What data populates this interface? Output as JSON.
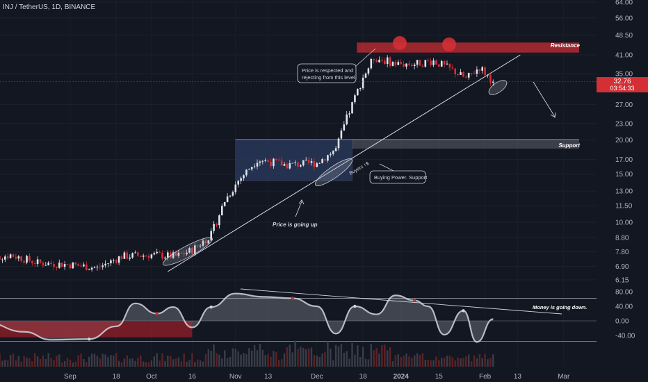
{
  "header": {
    "symbol_line": "INJ / TetherUS, 1D, BINANCE"
  },
  "colors": {
    "background": "#131722",
    "up": "#e0e3eb",
    "down": "#d32f35",
    "resistance": "#b22a30",
    "support": "#5d606b",
    "accumulation": "#2a3a5f",
    "price_tag": "#d32f35",
    "osc_fill": "#9598a1",
    "osc_neg": "#c2202a",
    "text": "#d1d4dc"
  },
  "chart_data": [
    {
      "type": "candlestick",
      "title": "INJ / TetherUS, 1D, BINANCE",
      "y_scale": "log",
      "y_ticks": [
        "64.00",
        "56.00",
        "48.50",
        "41.00",
        "35.00",
        "27.00",
        "23.00",
        "20.00",
        "17.00",
        "15.00",
        "13.00",
        "11.50",
        "10.00",
        "8.80",
        "7.80",
        "6.90",
        "6.15"
      ],
      "x_ticks": [
        "Sep",
        "18",
        "Oct",
        "16",
        "Nov",
        "13",
        "Dec",
        "18",
        "2024",
        "15",
        "Feb",
        "13",
        "Mar"
      ],
      "last_price": "32.76",
      "countdown": "03:54:33",
      "price_path": [
        {
          "date": "2023-08-01",
          "close": 7.3
        },
        {
          "date": "2023-08-10",
          "close": 7.6
        },
        {
          "date": "2023-08-20",
          "close": 7.1
        },
        {
          "date": "2023-09-01",
          "close": 7.0
        },
        {
          "date": "2023-09-11",
          "close": 6.8
        },
        {
          "date": "2023-09-20",
          "close": 7.5
        },
        {
          "date": "2023-10-01",
          "close": 7.6
        },
        {
          "date": "2023-10-10",
          "close": 7.5
        },
        {
          "date": "2023-10-16",
          "close": 7.9
        },
        {
          "date": "2023-10-23",
          "close": 9.0
        },
        {
          "date": "2023-10-28",
          "close": 12.0
        },
        {
          "date": "2023-11-02",
          "close": 14.2
        },
        {
          "date": "2023-11-09",
          "close": 17.0
        },
        {
          "date": "2023-11-20",
          "close": 16.2
        },
        {
          "date": "2023-12-01",
          "close": 16.5
        },
        {
          "date": "2023-12-08",
          "close": 18.5
        },
        {
          "date": "2023-12-12",
          "close": 24.0
        },
        {
          "date": "2023-12-18",
          "close": 34.0
        },
        {
          "date": "2023-12-22",
          "close": 40.0
        },
        {
          "date": "2023-12-31",
          "close": 38.0
        },
        {
          "date": "2024-01-06",
          "close": 38.0
        },
        {
          "date": "2024-01-13",
          "close": 39.0
        },
        {
          "date": "2024-01-20",
          "close": 36.0
        },
        {
          "date": "2024-01-25",
          "close": 33.5
        },
        {
          "date": "2024-01-30",
          "close": 37.0
        },
        {
          "date": "2024-02-04",
          "close": 32.76
        }
      ],
      "resistance_zone": {
        "low": 41.8,
        "high": 45.5,
        "label": "Resistance"
      },
      "support_zone": {
        "low": 18.6,
        "high": 20.1,
        "label": "Support"
      },
      "accumulation_box": {
        "from": "2023-11-01",
        "to": "2023-12-14",
        "low": 14.2,
        "high": 20.1
      },
      "trendline": {
        "from": {
          "date": "2023-10-07",
          "price": 6.6
        },
        "to": {
          "date": "2024-02-14",
          "price": 41.0
        }
      },
      "annotations": {
        "respected": "Price is respected and rejecting from this level.",
        "buying": "Buying Power. Support",
        "going_up": "Price is going up",
        "buyers": "Buyers ↑$"
      }
    },
    {
      "type": "area",
      "title": "",
      "y_ticks": [
        "80.00",
        "40.00",
        "0.00",
        "-40.00"
      ],
      "series": [
        {
          "values": [
            {
              "date": "2023-08-01",
              "v": -5
            },
            {
              "date": "2023-08-15",
              "v": -30
            },
            {
              "date": "2023-08-25",
              "v": -52
            },
            {
              "date": "2023-09-08",
              "v": -50
            },
            {
              "date": "2023-09-18",
              "v": -15
            },
            {
              "date": "2023-09-25",
              "v": 48
            },
            {
              "date": "2023-10-03",
              "v": 20
            },
            {
              "date": "2023-10-09",
              "v": 38
            },
            {
              "date": "2023-10-16",
              "v": -18
            },
            {
              "date": "2023-10-23",
              "v": 38
            },
            {
              "date": "2023-11-01",
              "v": 75
            },
            {
              "date": "2023-11-11",
              "v": 66
            },
            {
              "date": "2023-11-22",
              "v": 62
            },
            {
              "date": "2023-12-01",
              "v": 40
            },
            {
              "date": "2023-12-08",
              "v": -35
            },
            {
              "date": "2023-12-15",
              "v": 40
            },
            {
              "date": "2023-12-23",
              "v": 18
            },
            {
              "date": "2023-12-30",
              "v": 70
            },
            {
              "date": "2024-01-06",
              "v": 56
            },
            {
              "date": "2024-01-11",
              "v": 40
            },
            {
              "date": "2024-01-17",
              "v": -38
            },
            {
              "date": "2024-01-24",
              "v": 28
            },
            {
              "date": "2024-01-29",
              "v": -58
            },
            {
              "date": "2024-02-04",
              "v": 5
            }
          ]
        }
      ],
      "trendline_label": "Money is going down."
    },
    {
      "type": "bar",
      "title": "",
      "series": [
        {
          "name": "",
          "values": "volume_profile"
        }
      ]
    }
  ]
}
